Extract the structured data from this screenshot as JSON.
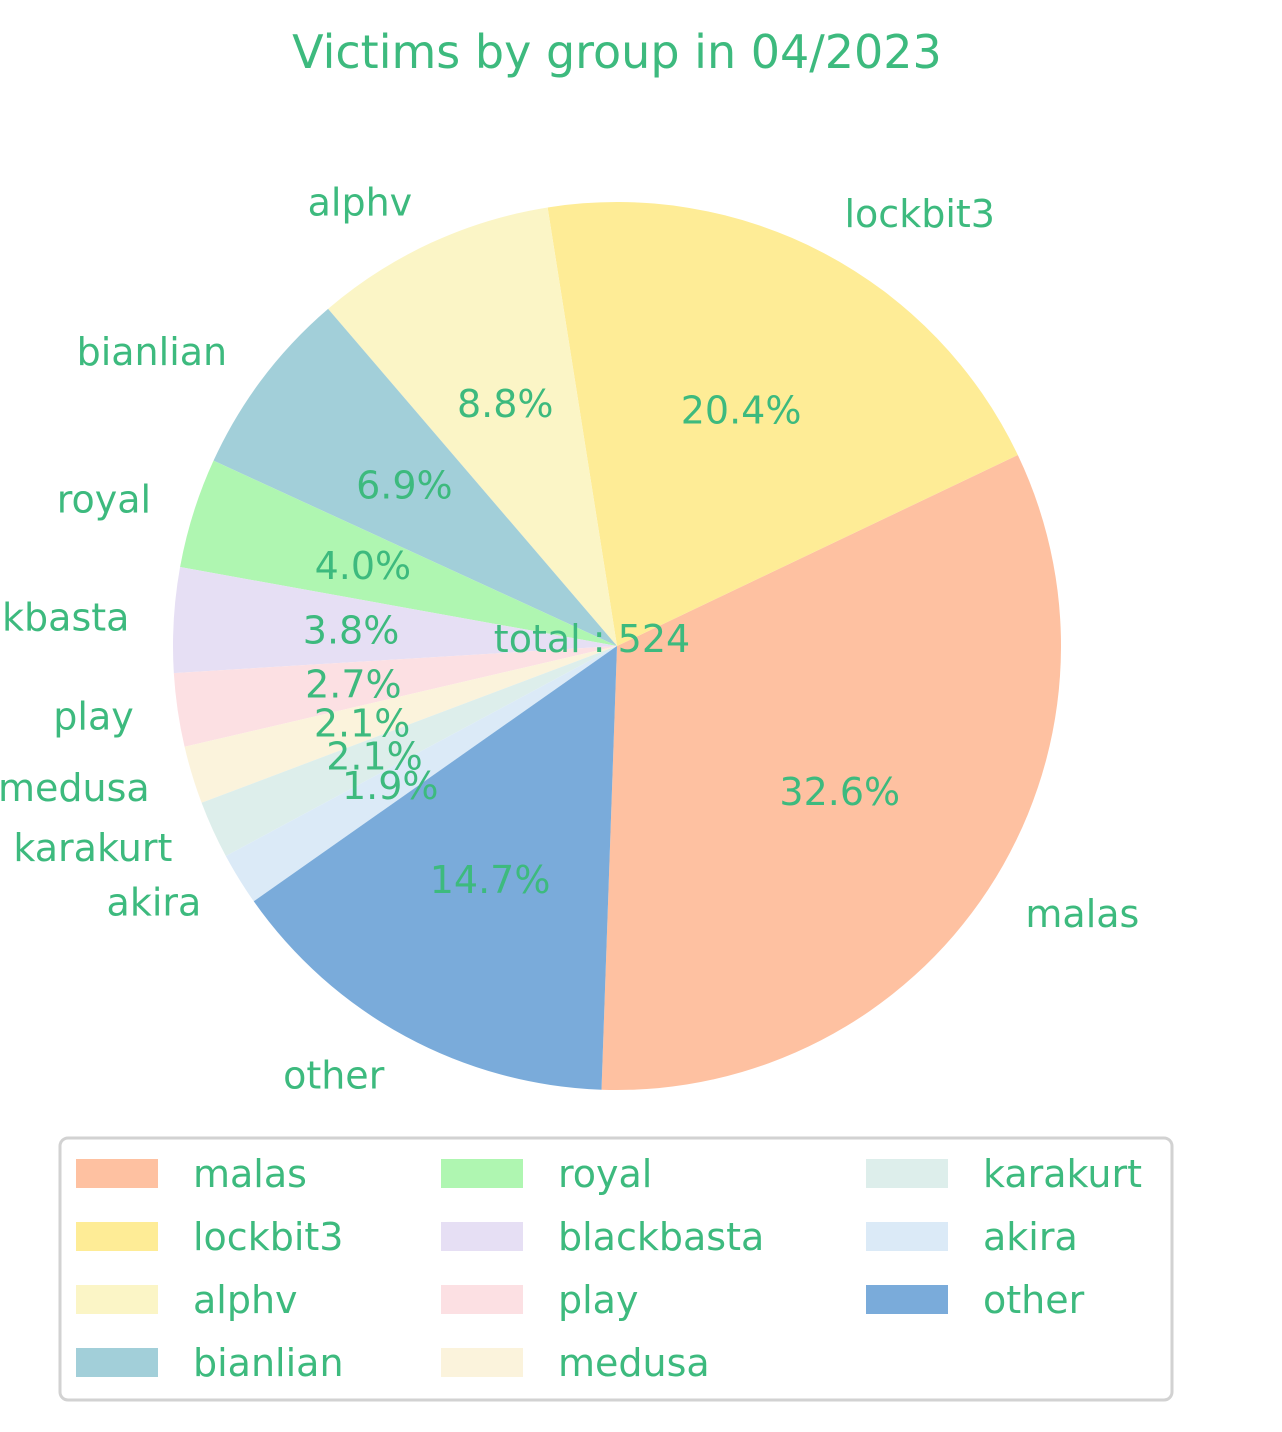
{
  "chart_data": {
    "type": "pie",
    "title": "Victims by group in 04/2023",
    "center_text": "total : 524",
    "text_color": "#3dba7e",
    "slices": [
      {
        "label": "malas",
        "value": 171,
        "pct_label": "32.6%",
        "color": "#fec1a1"
      },
      {
        "label": "lockbit3",
        "value": 107,
        "pct_label": "20.4%",
        "color": "#feec96"
      },
      {
        "label": "alphv",
        "value": 46,
        "pct_label": "8.8%",
        "color": "#fbf5c6"
      },
      {
        "label": "bianlian",
        "value": 36,
        "pct_label": "6.9%",
        "color": "#a2cfd9"
      },
      {
        "label": "royal",
        "value": 21,
        "pct_label": "4.0%",
        "color": "#aff6b1"
      },
      {
        "label": "blackbasta",
        "value": 20,
        "pct_label": "3.8%",
        "color": "#e6dff4"
      },
      {
        "label": "play",
        "value": 14,
        "pct_label": "2.7%",
        "color": "#fce0e3"
      },
      {
        "label": "medusa",
        "value": 11,
        "pct_label": "2.1%",
        "color": "#fbf3dc"
      },
      {
        "label": "karakurt",
        "value": 11,
        "pct_label": "2.1%",
        "color": "#ddeeeb"
      },
      {
        "label": "akira",
        "value": 10,
        "pct_label": "1.9%",
        "color": "#dbeaf7"
      },
      {
        "label": "other",
        "value": 77,
        "pct_label": "14.7%",
        "color": "#7aabda"
      }
    ],
    "legend_position": "bottom",
    "legend_columns": 3
  }
}
